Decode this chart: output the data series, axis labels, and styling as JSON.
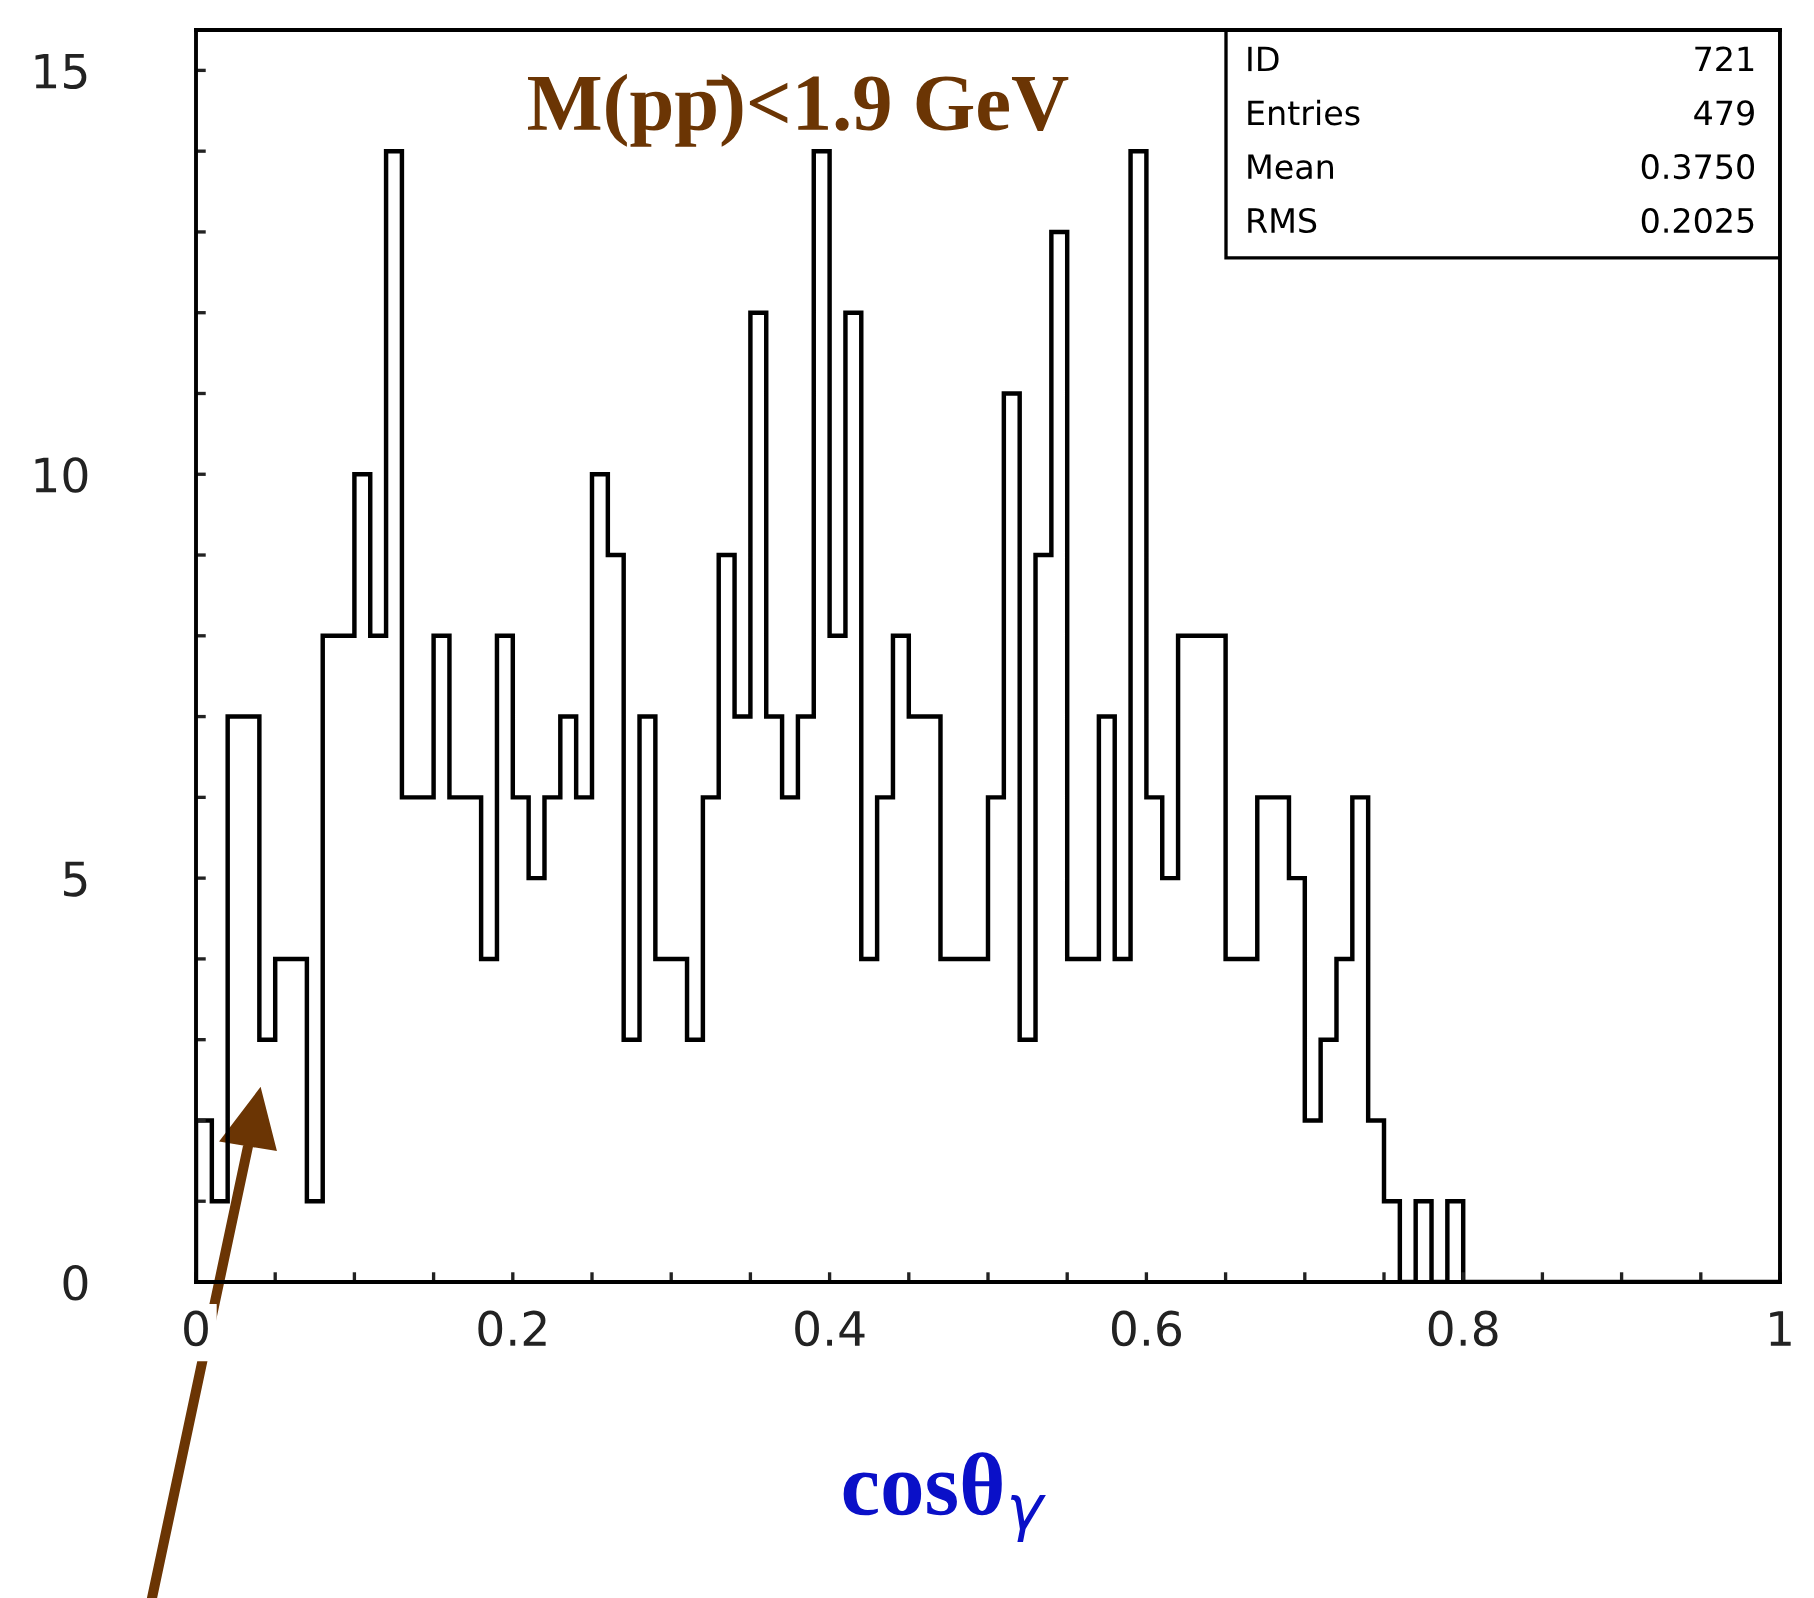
{
  "chart_data": {
    "type": "histogram",
    "title": "M(pp̄)<1.9 GeV",
    "xlabel": "cosθ$_{γ}$",
    "annotations": [
      "ID",
      "721",
      "Entries",
      "479",
      "Mean",
      "0.3750",
      "RMS",
      "0.2025"
    ],
    "bins": [
      0,
      0.01,
      0.02,
      0.03,
      0.04,
      0.05,
      0.06,
      0.07,
      0.08,
      0.09,
      0.1,
      0.11,
      0.12,
      0.13,
      0.14,
      0.15,
      0.16,
      0.17,
      0.18,
      0.19,
      0.2,
      0.21,
      0.22,
      0.23,
      0.24,
      0.25,
      0.26,
      0.27,
      0.28,
      0.29,
      0.3,
      0.31,
      0.32,
      0.33,
      0.34,
      0.35,
      0.36,
      0.37,
      0.38,
      0.39,
      0.4,
      0.41,
      0.42,
      0.43,
      0.44,
      0.45,
      0.46,
      0.47,
      0.48,
      0.49,
      0.5,
      0.51,
      0.52,
      0.53,
      0.54,
      0.55,
      0.56,
      0.57,
      0.58,
      0.59,
      0.6,
      0.61,
      0.62,
      0.63,
      0.64,
      0.65,
      0.66,
      0.67,
      0.68,
      0.69,
      0.7,
      0.71,
      0.72,
      0.73,
      0.74,
      0.75,
      0.76,
      0.77,
      0.78,
      0.79,
      0.8,
      0.81,
      0.82,
      0.83,
      0.84,
      0.85,
      0.86,
      0.87,
      0.88,
      0.89,
      0.9,
      0.91,
      0.92,
      0.93,
      0.94,
      0.95,
      0.96,
      0.97,
      0.98,
      0.99,
      1
    ],
    "values": [
      2,
      1,
      7,
      7,
      3,
      4,
      4,
      1,
      8,
      8,
      10,
      8,
      14,
      6,
      6,
      8,
      6,
      6,
      4,
      8,
      6,
      5,
      6,
      7,
      6,
      10,
      9,
      3,
      7,
      4,
      4,
      3,
      6,
      9,
      7,
      12,
      7,
      6,
      7,
      14,
      8,
      12,
      4,
      6,
      8,
      7,
      7,
      4,
      4,
      4,
      6,
      11,
      3,
      9,
      13,
      4,
      4,
      7,
      4,
      14,
      6,
      5,
      8,
      8,
      8,
      4,
      4,
      6,
      6,
      5,
      2,
      3,
      4,
      6,
      2,
      1,
      0,
      1,
      0,
      1,
      0,
      0,
      0,
      0,
      0,
      0,
      0,
      0,
      0,
      0,
      0,
      0,
      0,
      0,
      0,
      0,
      0,
      0,
      0,
      0
    ],
    "color": "#000000",
    "xlim": [
      0,
      1
    ],
    "xticks": [
      0,
      {
        "value": 0.05,
        "label": null
      },
      {
        "value": 0.1,
        "label": null
      },
      {
        "value": 0.15,
        "label": null
      },
      0.2,
      {
        "value": 0.25,
        "label": null
      },
      {
        "value": 0.3,
        "label": null
      },
      {
        "value": 0.35,
        "label": null
      },
      0.4,
      {
        "value": 0.45,
        "label": null
      },
      {
        "value": 0.5,
        "label": null
      },
      {
        "value": 0.55,
        "label": null
      },
      0.6,
      {
        "value": 0.65,
        "label": null
      },
      {
        "value": 0.7,
        "label": null
      },
      {
        "value": 0.75,
        "label": null
      },
      0.8,
      {
        "value": 0.85,
        "label": null
      },
      {
        "value": 0.9,
        "label": null
      },
      {
        "value": 0.95,
        "label": null
      },
      1
    ],
    "ylim": [
      0,
      15.5
    ],
    "yticks": [
      0,
      {
        "value": 1,
        "label": null
      },
      {
        "value": 2,
        "label": null
      },
      {
        "value": 3,
        "label": null
      },
      {
        "value": 4,
        "label": null
      },
      5,
      {
        "value": 6,
        "label": null
      },
      {
        "value": 7,
        "label": null
      },
      {
        "value": 8,
        "label": null
      },
      {
        "value": 9,
        "label": null
      },
      10,
      {
        "value": 11,
        "label": null
      },
      {
        "value": 12,
        "label": null
      },
      {
        "value": 13,
        "label": null
      },
      {
        "value": 14,
        "label": null
      },
      15
    ],
    "grid": false
  }
}
